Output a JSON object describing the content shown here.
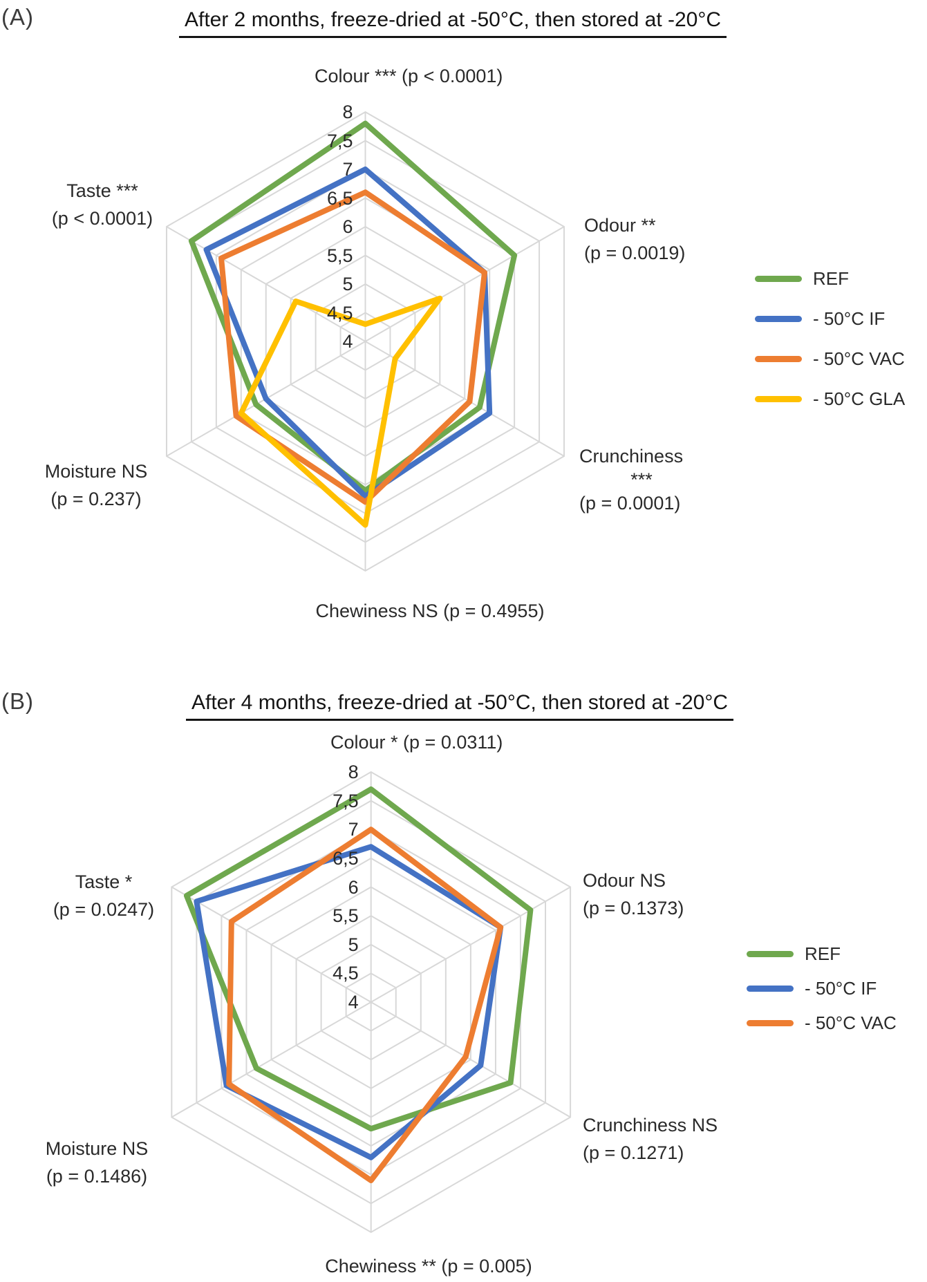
{
  "page": {
    "panel_a_tag": "(A)",
    "panel_b_tag": "(B)",
    "background": "#ffffff"
  },
  "colors": {
    "ref": "#6FA84E",
    "if": "#4472C4",
    "vac": "#ED7D31",
    "gla": "#FFC000",
    "grid": "#D8D8D8",
    "text": "#262626"
  },
  "chart_data": [
    {
      "type": "radar",
      "title": "After 2 months, freeze-dried at -50°C, then stored at -20°C",
      "categories": [
        "Colour",
        "Odour",
        "Crunchiness",
        "Chewiness",
        "Moisture",
        "Taste"
      ],
      "axis_range": [
        4,
        8
      ],
      "axis_step": 0.5,
      "tick_labels": [
        "8",
        "7,5",
        "7",
        "6,5",
        "6",
        "5,5",
        "5",
        "4,5",
        "4"
      ],
      "grid": true,
      "legend_position": "right",
      "axis_labels": {
        "colour": [
          "Colour ***  (p < 0.0001)"
        ],
        "odour": [
          "Odour **",
          "(p = 0.0019)"
        ],
        "crunchiness": [
          "Crunchiness",
          "***",
          "(p = 0.0001)"
        ],
        "chewiness": [
          "Chewiness NS  (p = 0.4955)"
        ],
        "moisture": [
          "Moisture NS",
          "(p = 0.237)"
        ],
        "taste": [
          "Taste ***",
          "(p < 0.0001)"
        ]
      },
      "series": [
        {
          "name": "REF",
          "color_key": "ref",
          "values": [
            7.8,
            7.0,
            6.3,
            6.6,
            6.2,
            7.5
          ]
        },
        {
          "name": "- 50°C IF",
          "color_key": "if",
          "values": [
            7.0,
            6.4,
            6.5,
            6.7,
            6.0,
            7.2
          ]
        },
        {
          "name": "- 50°C VAC",
          "color_key": "vac",
          "values": [
            6.6,
            6.4,
            6.1,
            6.8,
            6.6,
            6.9
          ]
        },
        {
          "name": "- 50°C GLA",
          "color_key": "gla",
          "values": [
            4.3,
            5.5,
            4.6,
            7.2,
            6.5,
            5.4
          ]
        }
      ]
    },
    {
      "type": "radar",
      "title": "After 4 months, freeze-dried at -50°C, then stored at -20°C",
      "categories": [
        "Colour",
        "Odour",
        "Crunchiness",
        "Chewiness",
        "Moisture",
        "Taste"
      ],
      "axis_range": [
        4,
        8
      ],
      "axis_step": 0.5,
      "tick_labels": [
        "8",
        "7,5",
        "7",
        "6,5",
        "6",
        "5,5",
        "5",
        "4,5",
        "4"
      ],
      "grid": true,
      "legend_position": "right",
      "axis_labels": {
        "colour": [
          "Colour *  (p = 0.0311)"
        ],
        "odour": [
          "Odour NS",
          "(p = 0.1373)"
        ],
        "crunchiness": [
          "Crunchiness NS",
          "(p = 0.1271)"
        ],
        "chewiness": [
          "Chewiness **  (p = 0.005)"
        ],
        "moisture": [
          "Moisture NS",
          "(p = 0.1486)"
        ],
        "taste": [
          "Taste *",
          "(p = 0.0247)"
        ]
      },
      "series": [
        {
          "name": "REF",
          "color_key": "ref",
          "values": [
            7.7,
            7.2,
            6.8,
            6.2,
            6.3,
            7.7
          ]
        },
        {
          "name": "- 50°C IF",
          "color_key": "if",
          "values": [
            6.7,
            6.6,
            6.2,
            6.7,
            6.9,
            7.5
          ]
        },
        {
          "name": "- 50°C VAC",
          "color_key": "vac",
          "values": [
            7.0,
            6.6,
            5.9,
            7.1,
            6.85,
            6.8
          ]
        }
      ]
    }
  ]
}
